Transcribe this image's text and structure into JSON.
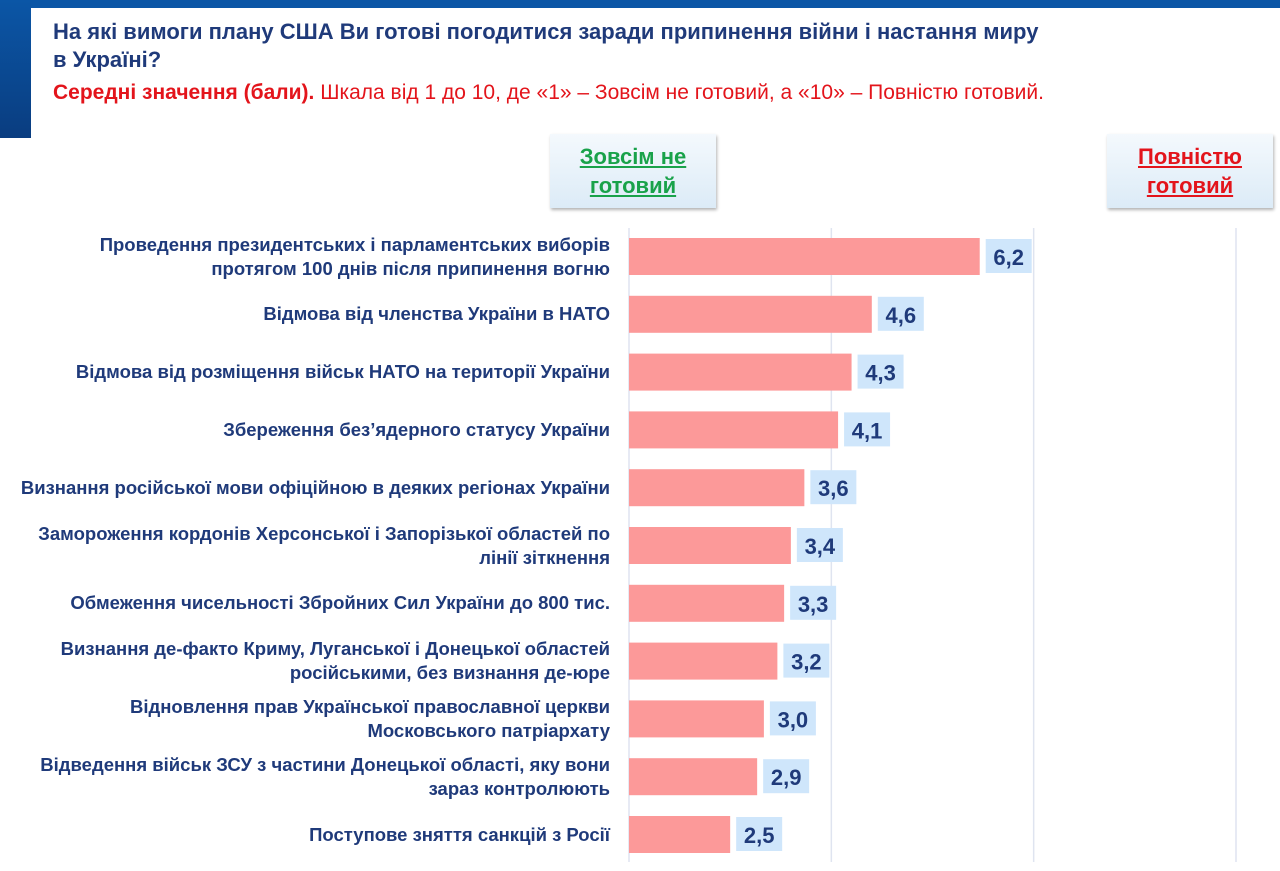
{
  "header": {
    "title": "На які вимоги плану США Ви готові погодитися заради припинення війни і настання миру в Україні?",
    "subtitle_bold": "Середні значення (бали).",
    "subtitle_rest": " Шкала від 1 до 10, де «1» – Зовсім не готовий, а «10» – Повністю готовий."
  },
  "scale_labels": {
    "left": "Зовсім не готовий",
    "right": "Повністю готовий"
  },
  "colors": {
    "bar": "#fc9999",
    "label_bg": "#cfe6fb",
    "text": "#1f3a7a",
    "accent_red": "#e3141b",
    "accent_green": "#19a24a",
    "grid": "#dfe4f0"
  },
  "chart_data": {
    "type": "bar",
    "orientation": "horizontal",
    "xlim": [
      1,
      10
    ],
    "grid": true,
    "gridlines": [
      1,
      4,
      7,
      10
    ],
    "categories": [
      "Проведення президентських і парламентських виборів протягом 100 днів після припинення вогню",
      "Відмова від членства України в НАТО",
      "Відмова від розміщення військ НАТО на території України",
      "Збереження без’ядерного статусу України",
      "Визнання російської мови офіційною в деяких регіонах України",
      "Замороження кордонів Херсонської і Запорізької областей по лінії зіткнення",
      "Обмеження чисельності Збройних Сил України до 800 тис.",
      "Визнання де-факто Криму, Луганської і Донецької областей російськими, без визнання де-юре",
      "Відновлення прав Української православної церкви Московського патріархату",
      "Відведення військ ЗСУ з частини Донецької області, яку вони зараз контролюють",
      "Поступове зняття санкцій з Росії"
    ],
    "values": [
      6.2,
      4.6,
      4.3,
      4.1,
      3.6,
      3.4,
      3.3,
      3.2,
      3.0,
      2.9,
      2.5
    ],
    "value_labels": [
      "6,2",
      "4,6",
      "4,3",
      "4,1",
      "3,6",
      "3,4",
      "3,3",
      "3,2",
      "3,0",
      "2,9",
      "2,5"
    ]
  }
}
